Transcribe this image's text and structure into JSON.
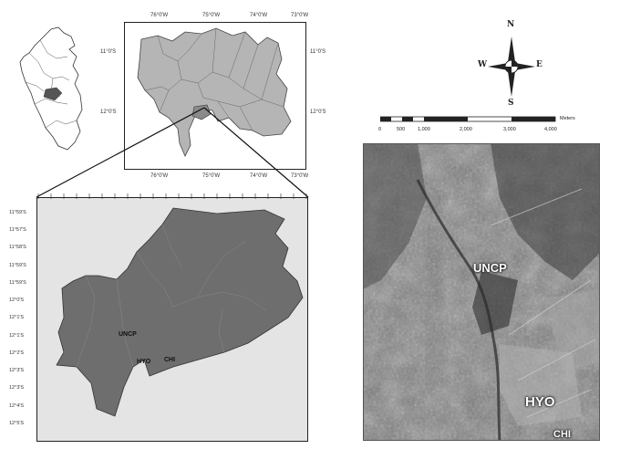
{
  "inset_top": {
    "x_ticks": [
      "76°0'W",
      "75°0'W",
      "74°0'W",
      "73°0'W"
    ],
    "x_ticks_bottom": [
      "76°0'W",
      "75°0'W",
      "74°0'W",
      "73°0'W"
    ],
    "y_ticks_left": [
      "11°0'S",
      "12°0'S"
    ],
    "y_ticks_right": [
      "11°0'S",
      "12°0'S"
    ]
  },
  "detail_map": {
    "labels": [
      "UNCP",
      "HYO",
      "CHI"
    ],
    "y_ticks": [
      "11°59'S",
      "11°57'S",
      "11°58'S",
      "11°59'S",
      "11°59'S",
      "12°0'S",
      "12°1'S",
      "12°1'S",
      "12°2'S",
      "12°3'S",
      "12°3'S",
      "12°4'S",
      "12°5'S"
    ],
    "x_tick_count": 22
  },
  "compass": {
    "n": "N",
    "s": "S",
    "e": "E",
    "w": "W"
  },
  "scale_bar": {
    "values": [
      "0",
      "500",
      "1,000",
      "2,000",
      "3,000",
      "4,000"
    ],
    "unit": "Meters"
  },
  "satellite": {
    "labels": [
      "UNCP",
      "HYO",
      "CHI"
    ]
  },
  "colors": {
    "region_fill": "#b5b5b5",
    "detail_fill": "#6e6e6e",
    "detail_bg": "#e4e4e4",
    "peru_fill": "#ffffff",
    "frame": "#222222"
  }
}
